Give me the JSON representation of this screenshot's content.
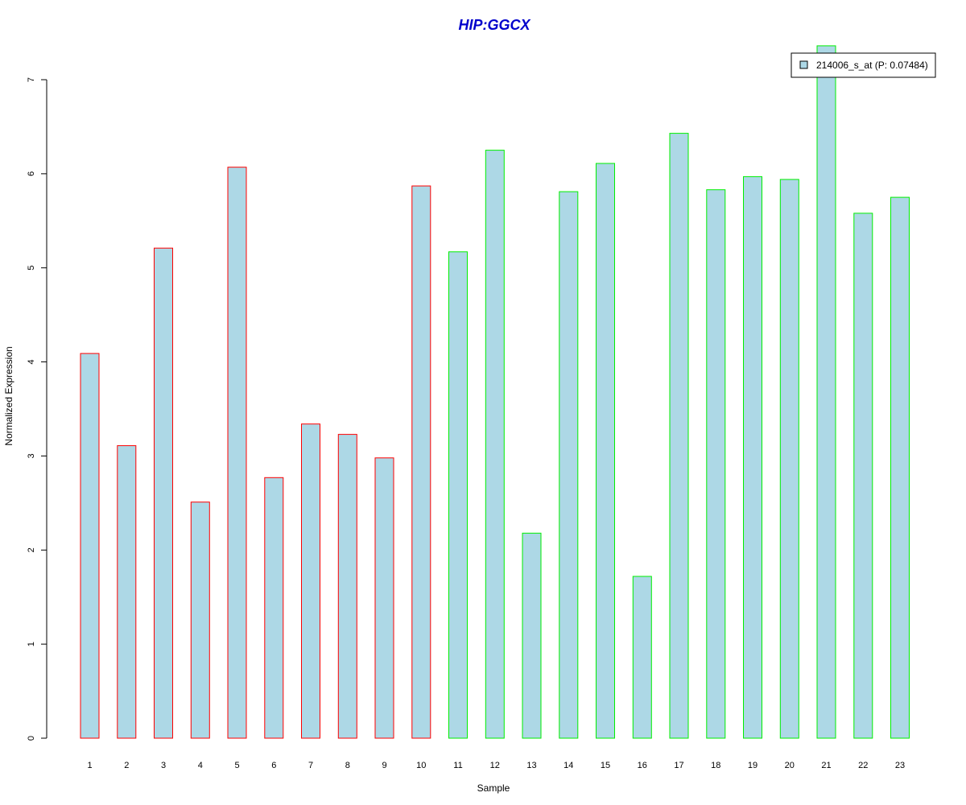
{
  "chart_data": {
    "type": "bar",
    "title": "HIP:GGCX",
    "xlabel": "Sample",
    "ylabel": "Normalized Expression",
    "categories": [
      "1",
      "2",
      "3",
      "4",
      "5",
      "6",
      "7",
      "8",
      "9",
      "10",
      "11",
      "12",
      "13",
      "14",
      "15",
      "16",
      "17",
      "18",
      "19",
      "20",
      "21",
      "22",
      "23"
    ],
    "series": [
      {
        "name": "214006_s_at (P: 0.07484)",
        "values": [
          4.09,
          3.11,
          5.21,
          2.51,
          6.07,
          2.77,
          3.34,
          3.23,
          2.98,
          5.87,
          5.17,
          6.25,
          2.18,
          5.81,
          6.11,
          1.72,
          6.43,
          5.83,
          5.97,
          5.94,
          7.36,
          5.58,
          5.75
        ]
      }
    ],
    "ylim": [
      0,
      7
    ],
    "yticks": [
      "0",
      "1",
      "2",
      "3",
      "4",
      "5",
      "6",
      "7"
    ],
    "group_sizes": [
      10,
      13
    ],
    "grid": false,
    "legend_position": "top-right"
  },
  "colors": {
    "title": "#0000cc",
    "bar_fill": "#add8e6",
    "group_borders": [
      "#ff0000",
      "#00ee00"
    ],
    "axis": "#000000"
  }
}
